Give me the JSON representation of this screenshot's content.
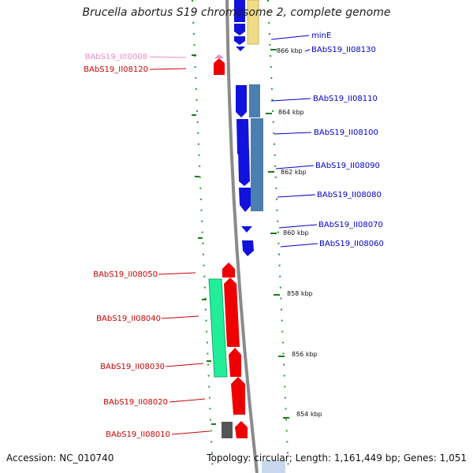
{
  "title": "Brucella abortus S19 chromosome 2, complete genome",
  "footer": {
    "accession_label": "Accession:",
    "accession": "NC_010740",
    "topology_label": "Topology:",
    "topology": "circular",
    "length_label": "Length:",
    "length": "1,161,449 bp",
    "genes_label": "Genes:",
    "genes": "1,051"
  },
  "scale_ticks": [
    "866 kbp",
    "864 kbp",
    "862 kbp",
    "860 kbp",
    "858 kbp",
    "856 kbp",
    "854 kbp"
  ],
  "gene_labels": [
    {
      "text": "minE",
      "color": "#0000cc"
    },
    {
      "text": "BAbS19_II08130",
      "color": "#0000cc"
    },
    {
      "text": "BAbS19_II08110",
      "color": "#0000cc"
    },
    {
      "text": "BAbS19_II08100",
      "color": "#0000cc"
    },
    {
      "text": "BAbS19_II08090",
      "color": "#0000cc"
    },
    {
      "text": "BAbS19_II08080",
      "color": "#0000cc"
    },
    {
      "text": "BAbS19_II08070",
      "color": "#0000cc"
    },
    {
      "text": "BAbS19_II08060",
      "color": "#0000cc"
    },
    {
      "text": "BAbS19_IIt0008",
      "color": "#ee88cc"
    },
    {
      "text": "BAbS19_II08120",
      "color": "#cc0000"
    },
    {
      "text": "BAbS19_II08050",
      "color": "#cc0000"
    },
    {
      "text": "BAbS19_II08040",
      "color": "#cc0000"
    },
    {
      "text": "BAbS19_II08030",
      "color": "#cc0000"
    },
    {
      "text": "BAbS19_II08020",
      "color": "#cc0000"
    },
    {
      "text": "BAbS19_II08010",
      "color": "#cc0000"
    }
  ],
  "colors": {
    "forward_cds": "#1010dd",
    "reverse_cds": "#ee0000",
    "cog_yellow": "#f0dc88",
    "cog_steelblue": "#4a7fb0",
    "cog_green": "#22ee99",
    "cog_gray": "#555555",
    "trna": "#ee88cc",
    "backbone": "#888888",
    "tick_green": "#228822"
  }
}
